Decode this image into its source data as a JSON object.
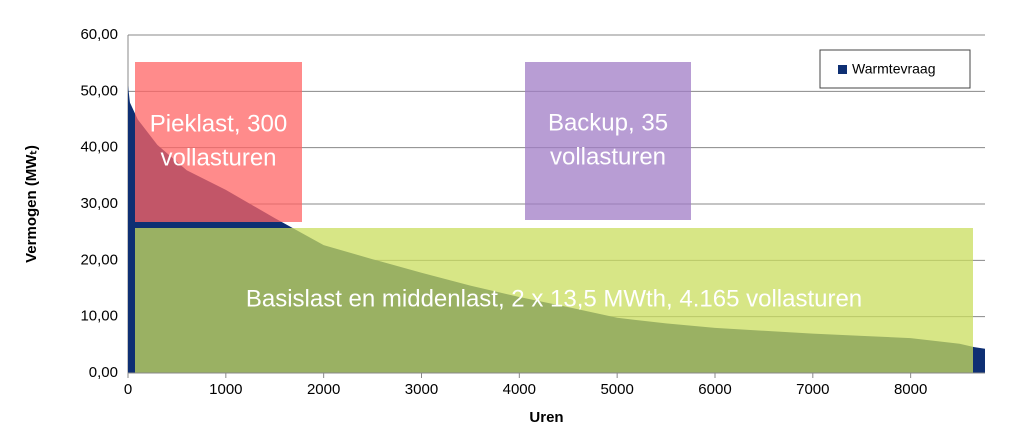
{
  "chart_data": {
    "type": "area",
    "x_label": "Uren",
    "y_label": "Vermogen (MWₜ)",
    "x": [
      0,
      20,
      100,
      300,
      600,
      1000,
      1500,
      2000,
      2500,
      3000,
      3500,
      4000,
      4500,
      5000,
      5500,
      6000,
      6500,
      7000,
      7500,
      8000,
      8500,
      8600,
      8650,
      8760
    ],
    "series": [
      {
        "name": "Warmtevraag",
        "color": "#0e2f73",
        "values": [
          51,
          48,
          45,
          40.5,
          36,
          32.5,
          27.5,
          22.7,
          20.2,
          17.8,
          15.5,
          13.5,
          11.7,
          9.8,
          8.8,
          8,
          7.5,
          7,
          6.6,
          6.2,
          5.2,
          4.8,
          4.6,
          4.3
        ]
      }
    ],
    "xlim": [
      0,
      8760
    ],
    "xticks": [
      0,
      1000,
      2000,
      3000,
      4000,
      5000,
      6000,
      7000,
      8000
    ],
    "ylim": [
      0,
      60
    ],
    "yticks": [
      {
        "value": 0,
        "label": "0,00"
      },
      {
        "value": 10,
        "label": "10,00"
      },
      {
        "value": 20,
        "label": "20,00"
      },
      {
        "value": 30,
        "label": "30,00"
      },
      {
        "value": 40,
        "label": "40,00"
      },
      {
        "value": 50,
        "label": "50,00"
      },
      {
        "value": 60,
        "label": "60,00"
      }
    ],
    "grid": true,
    "legend": "upper right",
    "annotations": [
      {
        "lines": [
          "Pieklast, 300",
          "vollasturen"
        ],
        "color": "#ff6464"
      },
      {
        "lines": [
          "Backup, 35",
          "vollasturen"
        ],
        "color": "#a07cc5"
      },
      {
        "lines": [
          "Basislast en middenlast, 2 x 13,5 MWth, 4.165 vollasturen"
        ],
        "color": "#c9dd5e"
      }
    ]
  }
}
